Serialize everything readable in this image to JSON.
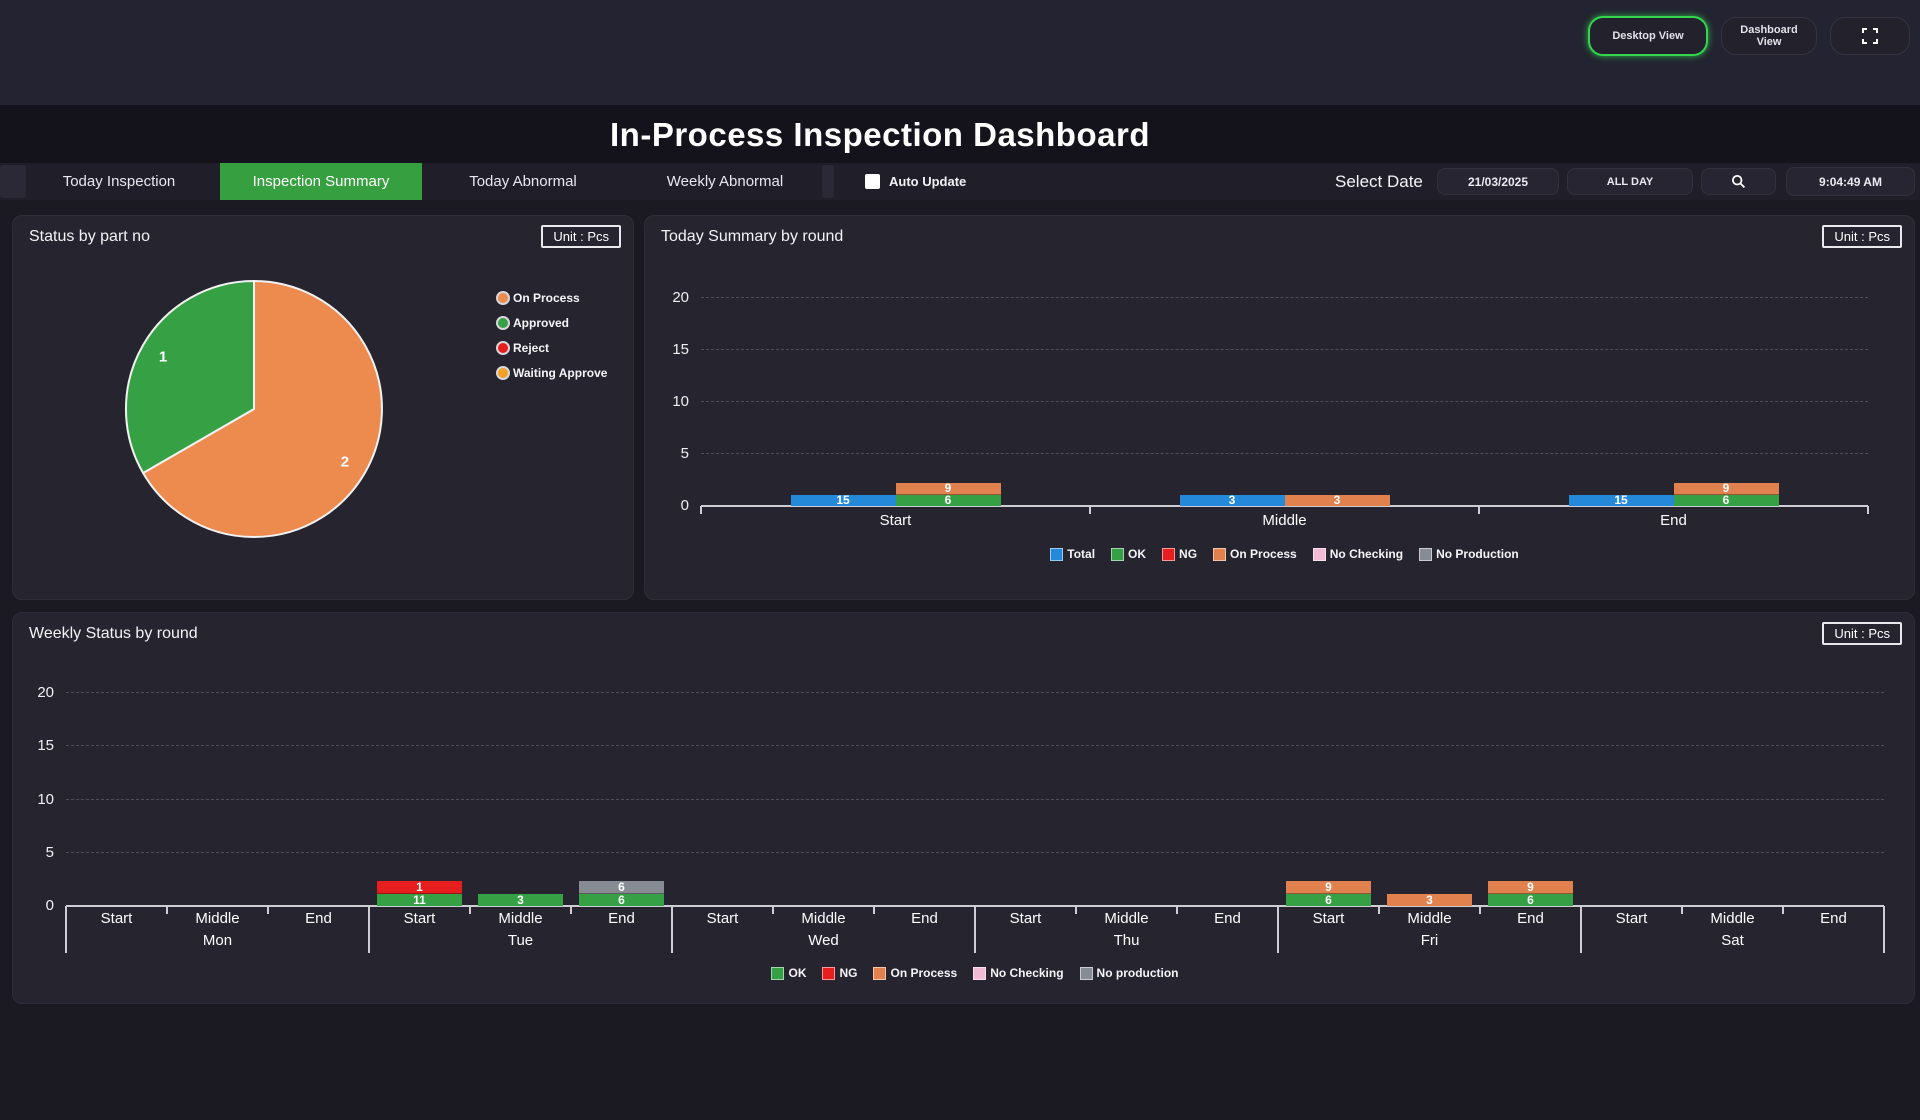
{
  "app": {
    "title": "In-Process Inspection Dashboard"
  },
  "header": {
    "buttons": [
      {
        "label": "Desktop View",
        "active": true
      },
      {
        "label": "Dashboard View",
        "active": false
      }
    ],
    "fullscreen_icon": "expand-corners-icon",
    "active_border_color": "#33D64F"
  },
  "tabs": [
    {
      "label": "Today Inspection",
      "active": false
    },
    {
      "label": "Inspection Summary",
      "active": true
    },
    {
      "label": "Today Abnormal",
      "active": false
    },
    {
      "label": "Weekly Abnormal",
      "active": false
    }
  ],
  "toolbar": {
    "auto_update_label": "Auto Update",
    "auto_update_checked": false,
    "select_date_label": "Select Date",
    "date_value": "21/03/2025",
    "range_value": "ALL DAY",
    "search_icon": "magnifier-icon",
    "time_value": "9:04:49 AM"
  },
  "panels": {
    "pie": {
      "title": "Status by part no",
      "unit": "Unit : Pcs"
    },
    "today": {
      "title": "Today Summary by round",
      "unit": "Unit : Pcs"
    },
    "weekly": {
      "title": "Weekly Status by round",
      "unit": "Unit : Pcs"
    }
  },
  "colors": {
    "tab_active_green": "#36A040",
    "page_bg": "#1B1A23",
    "panel_bg": "#26252F",
    "top_strip_bg": "#242331",
    "header_bg": "#14121A"
  },
  "chart_data": [
    {
      "type": "pie",
      "title": "Status by part no",
      "legend": [
        {
          "label": "On Process",
          "color": "#ED8B4F"
        },
        {
          "label": "Approved",
          "color": "#36A144"
        },
        {
          "label": "Reject",
          "color": "#E61E1E"
        },
        {
          "label": "Waiting Approve",
          "color": "#F2A124"
        }
      ],
      "slices": [
        {
          "name": "On Process",
          "value": 2,
          "label": "2",
          "color": "#ED8B4F",
          "start_deg": 0,
          "end_deg": 240
        },
        {
          "name": "Approved",
          "value": 1,
          "label": "1",
          "color": "#36A144",
          "start_deg": 240,
          "end_deg": 360
        }
      ]
    },
    {
      "type": "bar",
      "title": "Today Summary by round",
      "ylim": [
        0,
        20
      ],
      "yticks": [
        0,
        5,
        10,
        15,
        20
      ],
      "categories": [
        "Start",
        "Middle",
        "End"
      ],
      "series_colors": {
        "Total": "#2389D8",
        "OK": "#36A144",
        "NG": "#E61E1E",
        "On Process": "#E0814E",
        "No Checking": "#F2BBD5",
        "No Production": "#878C94"
      },
      "legend": [
        "Total",
        "OK",
        "NG",
        "On Process",
        "No Checking",
        "No Production"
      ],
      "groups": [
        {
          "category": "Start",
          "total": 15,
          "stack": [
            {
              "name": "OK",
              "value": 6
            },
            {
              "name": "On Process",
              "value": 9
            }
          ]
        },
        {
          "category": "Middle",
          "total": 3,
          "stack": [
            {
              "name": "On Process",
              "value": 3
            }
          ]
        },
        {
          "category": "End",
          "total": 15,
          "stack": [
            {
              "name": "OK",
              "value": 6
            },
            {
              "name": "On Process",
              "value": 9
            }
          ]
        }
      ]
    },
    {
      "type": "stacked-bar",
      "title": "Weekly Status by round",
      "ylim": [
        0,
        20
      ],
      "yticks": [
        0,
        5,
        10,
        15,
        20
      ],
      "days": [
        "Mon",
        "Tue",
        "Wed",
        "Thu",
        "Fri",
        "Sat"
      ],
      "slots": [
        "Start",
        "Middle",
        "End"
      ],
      "series_colors": {
        "OK": "#36A144",
        "NG": "#E61E1E",
        "On Process": "#E0814E",
        "No Checking": "#F2BBD5",
        "No production": "#878C94"
      },
      "legend": [
        "OK",
        "NG",
        "On Process",
        "No Checking",
        "No production"
      ],
      "bars": {
        "Tue": {
          "Start": [
            {
              "name": "OK",
              "value": 11
            },
            {
              "name": "NG",
              "value": 1
            }
          ],
          "Middle": [
            {
              "name": "OK",
              "value": 3
            }
          ],
          "End": [
            {
              "name": "OK",
              "value": 6
            },
            {
              "name": "No production",
              "value": 6
            }
          ]
        },
        "Fri": {
          "Start": [
            {
              "name": "OK",
              "value": 6
            },
            {
              "name": "On Process",
              "value": 9
            }
          ],
          "Middle": [
            {
              "name": "On Process",
              "value": 3
            }
          ],
          "End": [
            {
              "name": "OK",
              "value": 6
            },
            {
              "name": "On Process",
              "value": 9
            }
          ]
        }
      }
    }
  ]
}
